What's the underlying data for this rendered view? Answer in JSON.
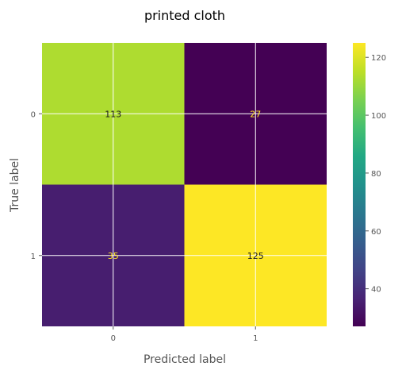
{
  "chart_data": {
    "type": "heatmap",
    "title": "printed cloth",
    "xlabel": "Predicted label",
    "ylabel": "True label",
    "x_categories": [
      "0",
      "1"
    ],
    "y_categories": [
      "0",
      "1"
    ],
    "values": [
      [
        113,
        27
      ],
      [
        35,
        125
      ]
    ],
    "colormap": "viridis",
    "colorbar": {
      "range": [
        27,
        125
      ],
      "ticks": [
        40,
        60,
        80,
        100,
        120
      ]
    },
    "grid": true
  }
}
